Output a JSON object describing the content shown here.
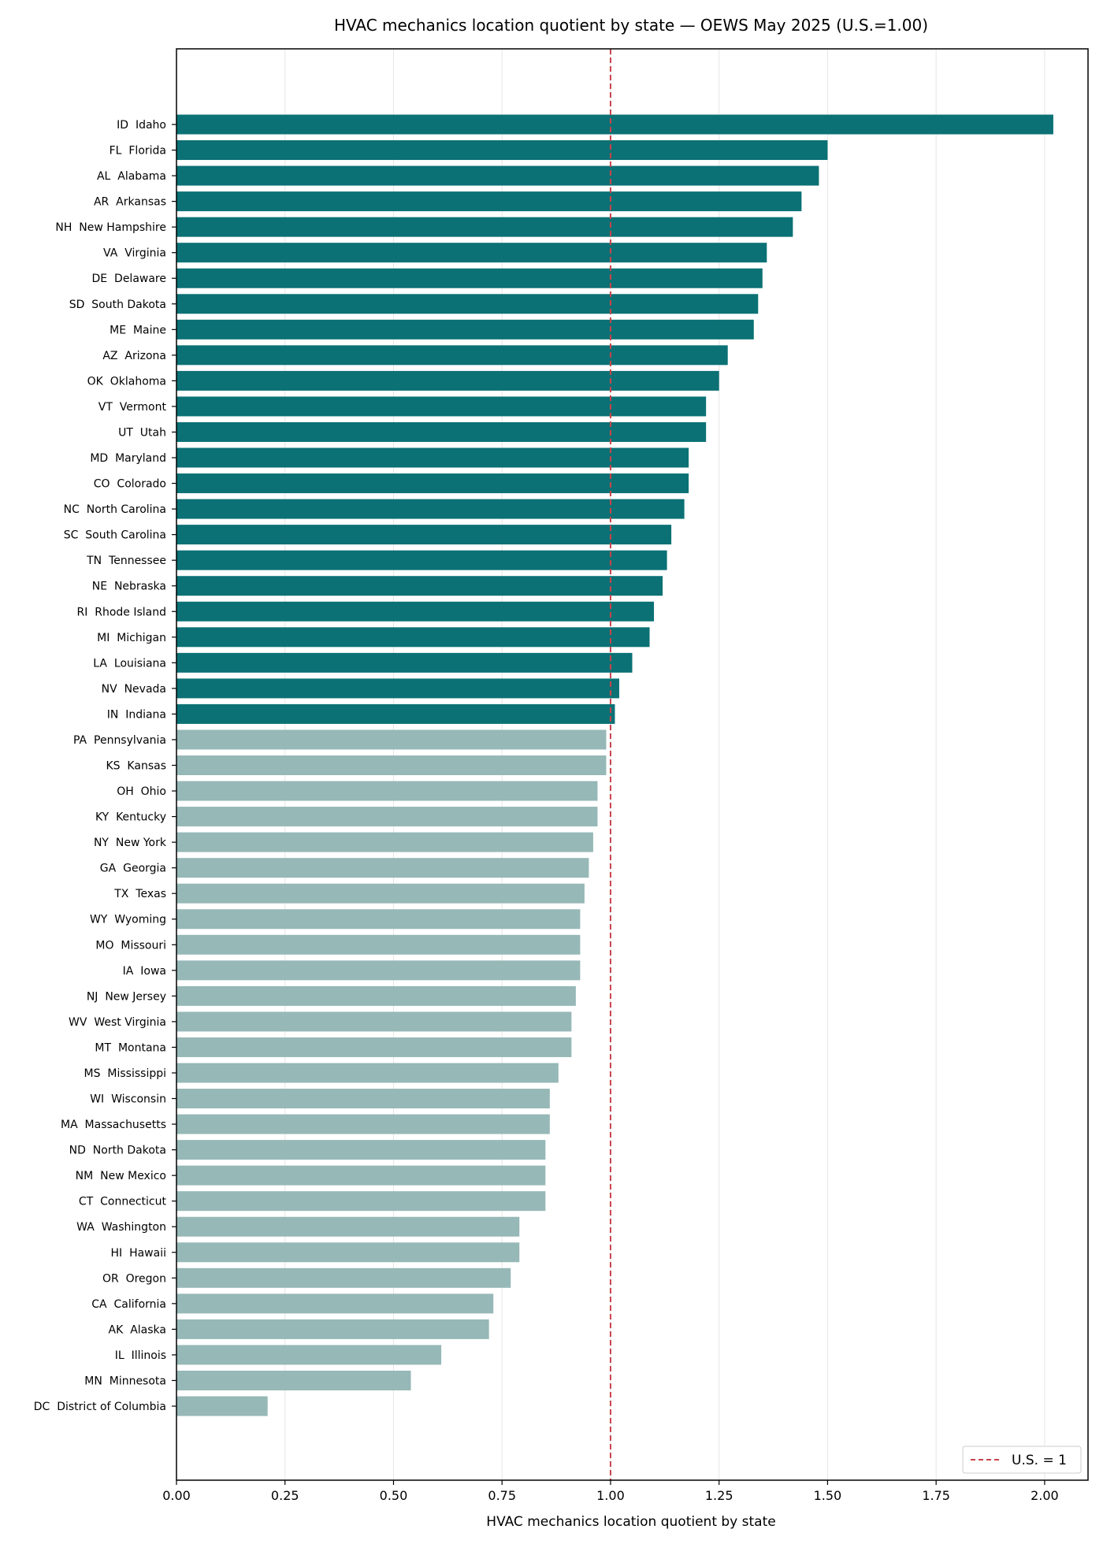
{
  "chart_data": {
    "type": "bar",
    "orientation": "horizontal",
    "title": "HVAC mechanics location quotient by state — OEWS May 2025 (U.S.=1.00)",
    "xlabel": "HVAC mechanics location quotient by state",
    "ylabel": "",
    "xlim": [
      0,
      2.1
    ],
    "xticks": [
      "0.00",
      "0.25",
      "0.50",
      "0.75",
      "1.00",
      "1.25",
      "1.50",
      "1.75",
      "2.00"
    ],
    "grid": "vertical",
    "reference_line": {
      "value": 1.0,
      "label": "U.S. = 1",
      "color": "#c9444b",
      "style": "dashed"
    },
    "legend": {
      "position": "bottom-right",
      "entries": [
        "U.S. = 1"
      ]
    },
    "colors": {
      "above": "#0b7175",
      "below": "#96b8b7"
    },
    "categories": [
      "ID  Idaho",
      "FL  Florida",
      "AL  Alabama",
      "AR  Arkansas",
      "NH  New Hampshire",
      "VA  Virginia",
      "DE  Delaware",
      "SD  South Dakota",
      "ME  Maine",
      "AZ  Arizona",
      "OK  Oklahoma",
      "VT  Vermont",
      "UT  Utah",
      "MD  Maryland",
      "CO  Colorado",
      "NC  North Carolina",
      "SC  South Carolina",
      "TN  Tennessee",
      "NE  Nebraska",
      "RI  Rhode Island",
      "MI  Michigan",
      "LA  Louisiana",
      "NV  Nevada",
      "IN  Indiana",
      "PA  Pennsylvania",
      "KS  Kansas",
      "OH  Ohio",
      "KY  Kentucky",
      "NY  New York",
      "GA  Georgia",
      "TX  Texas",
      "WY  Wyoming",
      "MO  Missouri",
      "IA  Iowa",
      "NJ  New Jersey",
      "WV  West Virginia",
      "MT  Montana",
      "MS  Mississippi",
      "WI  Wisconsin",
      "MA  Massachusetts",
      "ND  North Dakota",
      "NM  New Mexico",
      "CT  Connecticut",
      "WA  Washington",
      "HI  Hawaii",
      "OR  Oregon",
      "CA  California",
      "AK  Alaska",
      "IL  Illinois",
      "MN  Minnesota",
      "DC  District of Columbia"
    ],
    "values": [
      2.02,
      1.5,
      1.48,
      1.44,
      1.42,
      1.36,
      1.35,
      1.34,
      1.33,
      1.27,
      1.25,
      1.22,
      1.22,
      1.18,
      1.18,
      1.17,
      1.14,
      1.13,
      1.12,
      1.1,
      1.09,
      1.05,
      1.02,
      1.01,
      0.99,
      0.99,
      0.97,
      0.97,
      0.96,
      0.95,
      0.94,
      0.93,
      0.93,
      0.93,
      0.92,
      0.91,
      0.91,
      0.88,
      0.86,
      0.86,
      0.85,
      0.85,
      0.85,
      0.79,
      0.79,
      0.77,
      0.73,
      0.72,
      0.61,
      0.54,
      0.21
    ]
  }
}
